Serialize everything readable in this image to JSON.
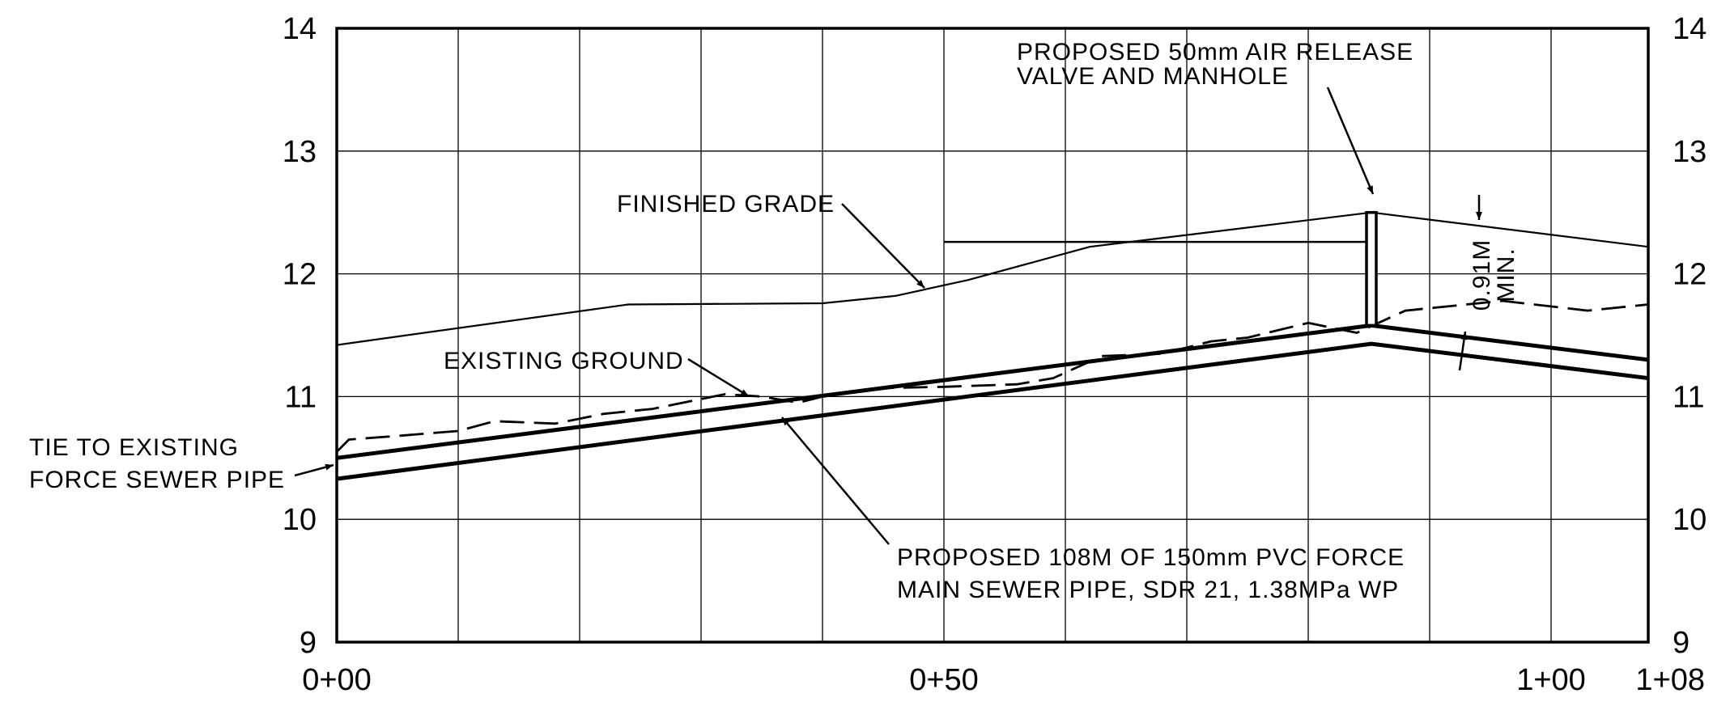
{
  "chart_data": {
    "type": "line",
    "title": "",
    "xlabel": "",
    "ylabel": "",
    "xlim": [
      0,
      108
    ],
    "ylim": [
      9,
      14
    ],
    "grid": true,
    "x_ticks": [
      0,
      50,
      100,
      108
    ],
    "x_tick_labels": [
      "0+00",
      "0+50",
      "1+00",
      "1+08"
    ],
    "y_ticks": [
      9,
      10,
      11,
      12,
      13,
      14
    ],
    "y_tick_labels": [
      "9",
      "10",
      "11",
      "12",
      "13",
      "14"
    ],
    "series": [
      {
        "name": "FINISHED GRADE",
        "style": "thin",
        "points": [
          [
            0,
            11.42
          ],
          [
            24,
            11.75
          ],
          [
            40,
            11.76
          ],
          [
            46,
            11.82
          ],
          [
            52,
            11.95
          ],
          [
            62,
            12.22
          ],
          [
            85.2,
            12.5
          ],
          [
            108,
            12.22
          ]
        ]
      },
      {
        "name": "EXISTING GROUND",
        "style": "dashed",
        "points": [
          [
            0,
            10.55
          ],
          [
            1,
            10.65
          ],
          [
            5,
            10.68
          ],
          [
            10,
            10.72
          ],
          [
            13,
            10.8
          ],
          [
            18,
            10.78
          ],
          [
            22,
            10.86
          ],
          [
            26,
            10.9
          ],
          [
            32,
            11.02
          ],
          [
            35,
            11.0
          ],
          [
            38,
            10.95
          ],
          [
            40,
            11.0
          ],
          [
            45,
            11.07
          ],
          [
            50,
            11.08
          ],
          [
            56,
            11.1
          ],
          [
            59,
            11.15
          ],
          [
            63,
            11.33
          ],
          [
            68,
            11.35
          ],
          [
            72,
            11.45
          ],
          [
            75,
            11.48
          ],
          [
            80,
            11.6
          ],
          [
            84,
            11.52
          ],
          [
            88,
            11.7
          ],
          [
            96,
            11.78
          ],
          [
            103,
            11.7
          ],
          [
            108,
            11.75
          ]
        ]
      },
      {
        "name": "PIPE TOP",
        "style": "thick",
        "points": [
          [
            0,
            10.5
          ],
          [
            85.2,
            11.58
          ],
          [
            108,
            11.3
          ]
        ]
      },
      {
        "name": "PIPE BOTTOM",
        "style": "thick",
        "points": [
          [
            0,
            10.33
          ],
          [
            85.2,
            11.43
          ],
          [
            108,
            11.15
          ]
        ]
      }
    ],
    "annotations": [
      {
        "id": "air-release",
        "lines": [
          "PROPOSED 50mm AIR RELEASE",
          "VALVE AND MANHOLE"
        ]
      },
      {
        "id": "finished-grade",
        "lines": [
          "FINISHED GRADE"
        ]
      },
      {
        "id": "existing-ground",
        "lines": [
          "EXISTING GROUND"
        ]
      },
      {
        "id": "tie-existing",
        "lines": [
          "TIE TO EXISTING",
          "FORCE SEWER PIPE"
        ]
      },
      {
        "id": "proposed-pipe",
        "lines": [
          "PROPOSED 108M OF 150mm PVC FORCE",
          "MAIN SEWER PIPE, SDR 21, 1.38MPa WP"
        ]
      },
      {
        "id": "cover-min",
        "lines": [
          "0.91M",
          "MIN."
        ]
      }
    ],
    "features": {
      "manhole_station": 85.2,
      "manhole_bottom_elev": 11.58,
      "manhole_top_elev": 12.5,
      "ref_line": {
        "x1": 50,
        "x2": 85,
        "elev": 12.26
      }
    }
  }
}
